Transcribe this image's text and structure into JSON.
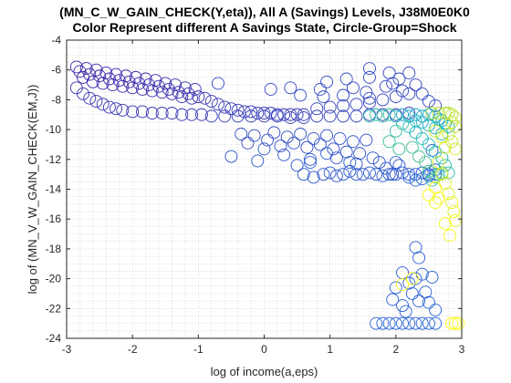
{
  "chart_data": {
    "type": "scatter",
    "title": "(MN_C_W_GAIN_CHECK(Y,eta)), All A (Savings) Levels, J38M0E0K0",
    "subtitle": "Color Represent different A Savings State, Circle-Group=Shock",
    "xlabel": "log of income(a,eps)",
    "ylabel": "log of (MN_V_W_GAIN_CHECK(EM,J))",
    "xlim": [
      -3,
      3
    ],
    "ylim": [
      -24,
      -4
    ],
    "xticks": [
      "-3",
      "-2",
      "-1",
      "0",
      "1",
      "2",
      "3"
    ],
    "yticks": [
      "-4",
      "-6",
      "-8",
      "-10",
      "-12",
      "-14",
      "-16",
      "-18",
      "-20",
      "-22",
      "-24"
    ],
    "grid": "minor-dotted",
    "marker": "open-circle",
    "colormap": "parula",
    "colors": {
      "low": "#3a1f9e",
      "mid": "#1fa3c8",
      "high": "#f3e81b"
    },
    "series": [
      {
        "points": [
          [
            -2.85,
            -5.8
          ],
          [
            -2.8,
            -6.1
          ],
          [
            -2.75,
            -6.5
          ],
          [
            -2.7,
            -5.9
          ],
          [
            -2.65,
            -6.3
          ],
          [
            -2.6,
            -6.8
          ],
          [
            -2.55,
            -6.0
          ],
          [
            -2.5,
            -6.4
          ],
          [
            -2.45,
            -6.9
          ],
          [
            -2.4,
            -6.2
          ],
          [
            -2.35,
            -6.6
          ],
          [
            -2.3,
            -7.0
          ],
          [
            -2.25,
            -6.3
          ],
          [
            -2.2,
            -6.7
          ],
          [
            -2.15,
            -7.1
          ],
          [
            -2.1,
            -6.4
          ],
          [
            -2.05,
            -6.8
          ],
          [
            -2.0,
            -7.2
          ],
          [
            -1.95,
            -6.5
          ],
          [
            -1.9,
            -6.9
          ],
          [
            -1.85,
            -7.3
          ],
          [
            -1.8,
            -6.6
          ],
          [
            -1.75,
            -7.0
          ],
          [
            -1.7,
            -7.4
          ],
          [
            -1.65,
            -6.7
          ],
          [
            -1.6,
            -7.1
          ],
          [
            -1.55,
            -7.5
          ],
          [
            -1.5,
            -6.9
          ],
          [
            -1.45,
            -7.3
          ],
          [
            -1.4,
            -7.6
          ],
          [
            -1.35,
            -7.0
          ],
          [
            -1.3,
            -7.5
          ],
          [
            -1.25,
            -7.8
          ],
          [
            -1.2,
            -7.2
          ],
          [
            -1.15,
            -7.6
          ],
          [
            -1.1,
            -7.9
          ],
          [
            -1.05,
            -7.3
          ],
          [
            -1.0,
            -7.8
          ],
          [
            -2.85,
            -7.2
          ],
          [
            -2.75,
            -7.6
          ],
          [
            -2.65,
            -7.9
          ],
          [
            -2.55,
            -8.1
          ],
          [
            -2.45,
            -8.3
          ],
          [
            -2.35,
            -8.5
          ],
          [
            -2.25,
            -8.6
          ],
          [
            -2.15,
            -8.7
          ],
          [
            -2.0,
            -8.8
          ],
          [
            -1.85,
            -8.8
          ],
          [
            -1.7,
            -8.9
          ],
          [
            -1.55,
            -8.9
          ],
          [
            -1.4,
            -8.9
          ],
          [
            -1.25,
            -9.0
          ],
          [
            -1.1,
            -9.0
          ],
          [
            -0.95,
            -9.0
          ],
          [
            -0.9,
            -7.9
          ],
          [
            -0.8,
            -8.1
          ],
          [
            -0.7,
            -8.3
          ],
          [
            -0.6,
            -8.5
          ],
          [
            -0.5,
            -8.6
          ],
          [
            -0.4,
            -8.7
          ],
          [
            -0.3,
            -8.8
          ],
          [
            -0.2,
            -8.8
          ],
          [
            -0.1,
            -8.9
          ],
          [
            0.0,
            -8.9
          ],
          [
            0.1,
            -8.9
          ],
          [
            0.2,
            -9.0
          ],
          [
            0.3,
            -9.0
          ],
          [
            0.4,
            -9.0
          ],
          [
            0.5,
            -9.0
          ],
          [
            0.6,
            -9.0
          ],
          [
            -0.8,
            -9.1
          ],
          [
            -0.6,
            -9.1
          ],
          [
            -0.4,
            -9.1
          ],
          [
            -0.2,
            -9.1
          ],
          [
            0.0,
            -9.1
          ],
          [
            0.2,
            -9.1
          ],
          [
            0.4,
            -9.2
          ],
          [
            0.6,
            -9.2
          ],
          [
            0.8,
            -9.1
          ],
          [
            1.0,
            -9.1
          ],
          [
            1.2,
            -9.1
          ],
          [
            1.4,
            -9.1
          ],
          [
            1.6,
            -9.0
          ],
          [
            1.8,
            -9.0
          ],
          [
            2.0,
            -9.0
          ],
          [
            2.2,
            -8.9
          ],
          [
            0.8,
            -8.6
          ],
          [
            1.0,
            -8.5
          ],
          [
            1.2,
            -8.4
          ],
          [
            1.4,
            -8.3
          ],
          [
            1.6,
            -8.2
          ],
          [
            1.8,
            -8.0
          ],
          [
            2.0,
            -7.8
          ],
          [
            2.2,
            -7.6
          ],
          [
            1.85,
            -7.1
          ],
          [
            1.95,
            -6.9
          ],
          [
            2.05,
            -6.6
          ],
          [
            2.2,
            -6.2
          ],
          [
            2.3,
            -7.0
          ],
          [
            2.4,
            -7.6
          ],
          [
            2.5,
            -8.1
          ],
          [
            2.6,
            -8.4
          ],
          [
            0.1,
            -7.3
          ],
          [
            -0.7,
            -6.9
          ],
          [
            0.4,
            -7.2
          ],
          [
            0.9,
            -7.8
          ],
          [
            1.2,
            -7.7
          ],
          [
            1.35,
            -7.2
          ],
          [
            1.55,
            -7.5
          ],
          [
            1.6,
            -7.9
          ],
          [
            0.95,
            -6.8
          ],
          [
            1.25,
            -6.6
          ],
          [
            1.6,
            -6.5
          ],
          [
            1.9,
            -6.2
          ],
          [
            1.6,
            -5.9
          ],
          [
            2.1,
            -7.4
          ],
          [
            0.85,
            -7.3
          ],
          [
            0.55,
            -7.7
          ],
          [
            -0.35,
            -10.3
          ],
          [
            -0.25,
            -10.9
          ],
          [
            -0.15,
            -10.4
          ],
          [
            0.05,
            -10.7
          ],
          [
            0.15,
            -10.2
          ],
          [
            0.25,
            -11.1
          ],
          [
            0.35,
            -10.5
          ],
          [
            0.45,
            -10.9
          ],
          [
            0.55,
            -10.3
          ],
          [
            0.65,
            -11.2
          ],
          [
            0.75,
            -10.6
          ],
          [
            0.85,
            -11.0
          ],
          [
            0.95,
            -10.4
          ],
          [
            1.05,
            -11.3
          ],
          [
            1.15,
            -10.6
          ],
          [
            1.25,
            -11.5
          ],
          [
            1.35,
            -10.8
          ],
          [
            1.45,
            -11.6
          ],
          [
            1.55,
            -10.7
          ],
          [
            1.65,
            -11.9
          ],
          [
            1.75,
            -12.2
          ],
          [
            1.85,
            -12.6
          ],
          [
            1.95,
            -13.0
          ],
          [
            2.05,
            -12.4
          ],
          [
            -0.5,
            -11.8
          ],
          [
            -0.1,
            -12.1
          ],
          [
            0.3,
            -11.7
          ],
          [
            0.7,
            -12.0
          ],
          [
            1.1,
            -11.9
          ],
          [
            1.4,
            -12.3
          ],
          [
            0.5,
            -12.4
          ],
          [
            0.0,
            -11.3
          ],
          [
            0.6,
            -13.0
          ],
          [
            0.75,
            -13.2
          ],
          [
            0.9,
            -13.0
          ],
          [
            1.0,
            -12.9
          ],
          [
            1.1,
            -13.1
          ],
          [
            1.2,
            -13.0
          ],
          [
            1.3,
            -12.8
          ],
          [
            1.4,
            -13.0
          ],
          [
            1.5,
            -13.0
          ],
          [
            1.6,
            -12.9
          ],
          [
            1.7,
            -13.0
          ],
          [
            1.8,
            -13.1
          ],
          [
            1.9,
            -13.0
          ],
          [
            2.0,
            -13.0
          ],
          [
            2.1,
            -12.9
          ],
          [
            2.2,
            -13.0
          ],
          [
            2.3,
            -13.0
          ],
          [
            2.4,
            -12.9
          ],
          [
            2.5,
            -13.0
          ],
          [
            2.6,
            -13.0
          ],
          [
            0.7,
            -12.2
          ],
          [
            0.95,
            -11.6
          ],
          [
            1.3,
            -12.2
          ],
          [
            2.0,
            -12.2
          ],
          [
            2.3,
            -17.9
          ],
          [
            2.35,
            -18.6
          ],
          [
            2.1,
            -19.6
          ],
          [
            2.2,
            -20.3
          ],
          [
            2.0,
            -20.6
          ],
          [
            2.3,
            -20.0
          ],
          [
            2.4,
            -19.7
          ],
          [
            2.25,
            -21.0
          ],
          [
            1.95,
            -21.4
          ],
          [
            2.1,
            -21.8
          ],
          [
            2.35,
            -21.5
          ],
          [
            2.45,
            -20.9
          ],
          [
            2.5,
            -21.6
          ],
          [
            2.6,
            -22.1
          ],
          [
            2.55,
            -19.9
          ],
          [
            2.15,
            -22.2
          ],
          [
            1.7,
            -23.0
          ],
          [
            1.8,
            -23.0
          ],
          [
            1.9,
            -23.0
          ],
          [
            2.0,
            -23.0
          ],
          [
            2.1,
            -23.0
          ],
          [
            2.2,
            -23.0
          ],
          [
            2.3,
            -23.0
          ],
          [
            2.4,
            -23.0
          ],
          [
            2.5,
            -23.0
          ],
          [
            2.6,
            -23.0
          ],
          [
            2.2,
            -13.2
          ],
          [
            2.3,
            -13.4
          ],
          [
            2.4,
            -13.3
          ],
          [
            2.5,
            -13.1
          ],
          [
            2.6,
            -12.7
          ],
          [
            2.55,
            -11.4
          ]
        ]
      },
      {
        "points": [
          [
            2.0,
            -9.1
          ],
          [
            2.1,
            -9.0
          ],
          [
            2.2,
            -9.1
          ],
          [
            2.3,
            -9.0
          ],
          [
            2.4,
            -9.1
          ],
          [
            2.5,
            -9.0
          ],
          [
            2.6,
            -9.1
          ],
          [
            2.65,
            -9.3
          ],
          [
            2.7,
            -9.4
          ],
          [
            2.75,
            -9.6
          ],
          [
            2.8,
            -9.8
          ],
          [
            2.3,
            -9.4
          ],
          [
            2.4,
            -9.5
          ],
          [
            2.5,
            -9.7
          ],
          [
            2.6,
            -9.9
          ],
          [
            2.7,
            -10.3
          ],
          [
            2.2,
            -9.8
          ],
          [
            2.3,
            -10.2
          ],
          [
            2.4,
            -10.6
          ],
          [
            2.5,
            -11.0
          ],
          [
            2.6,
            -11.5
          ],
          [
            2.7,
            -11.9
          ],
          [
            2.75,
            -12.4
          ],
          [
            2.8,
            -12.9
          ],
          [
            1.6,
            -9.1
          ],
          [
            1.7,
            -9.0
          ],
          [
            1.8,
            -9.1
          ],
          [
            1.9,
            -9.0
          ],
          [
            2.1,
            -9.6
          ],
          [
            2.0,
            -10.1
          ],
          [
            1.9,
            -10.8
          ],
          [
            2.05,
            -11.3
          ],
          [
            2.55,
            -13.4
          ],
          [
            2.6,
            -13.2
          ],
          [
            2.65,
            -13.0
          ],
          [
            2.7,
            -12.9
          ],
          [
            2.5,
            -12.8
          ],
          [
            2.45,
            -12.2
          ],
          [
            2.35,
            -11.8
          ],
          [
            2.25,
            -11.2
          ]
        ]
      },
      {
        "points": [
          [
            2.55,
            -8.9
          ],
          [
            2.65,
            -8.9
          ],
          [
            2.75,
            -8.9
          ],
          [
            2.8,
            -8.9
          ],
          [
            2.85,
            -9.0
          ],
          [
            2.9,
            -9.2
          ],
          [
            2.85,
            -9.5
          ],
          [
            2.9,
            -9.8
          ],
          [
            2.8,
            -10.3
          ],
          [
            2.85,
            -10.8
          ],
          [
            2.9,
            -11.3
          ],
          [
            2.6,
            -10.1
          ],
          [
            2.7,
            -10.5
          ],
          [
            2.75,
            -11.2
          ],
          [
            2.65,
            -12.2
          ],
          [
            2.7,
            -13.0
          ],
          [
            2.75,
            -13.6
          ],
          [
            2.8,
            -14.3
          ],
          [
            2.85,
            -14.9
          ],
          [
            2.88,
            -15.5
          ],
          [
            2.9,
            -16.1
          ],
          [
            2.82,
            -17.1
          ],
          [
            2.6,
            -14.9
          ],
          [
            2.5,
            -14.4
          ],
          [
            2.65,
            -14.6
          ],
          [
            2.1,
            -20.4
          ],
          [
            2.25,
            -20.0
          ],
          [
            2.75,
            -16.3
          ],
          [
            2.85,
            -23.0
          ],
          [
            2.9,
            -23.0
          ],
          [
            2.95,
            -23.0
          ],
          [
            2.6,
            -13.9
          ]
        ]
      }
    ]
  }
}
